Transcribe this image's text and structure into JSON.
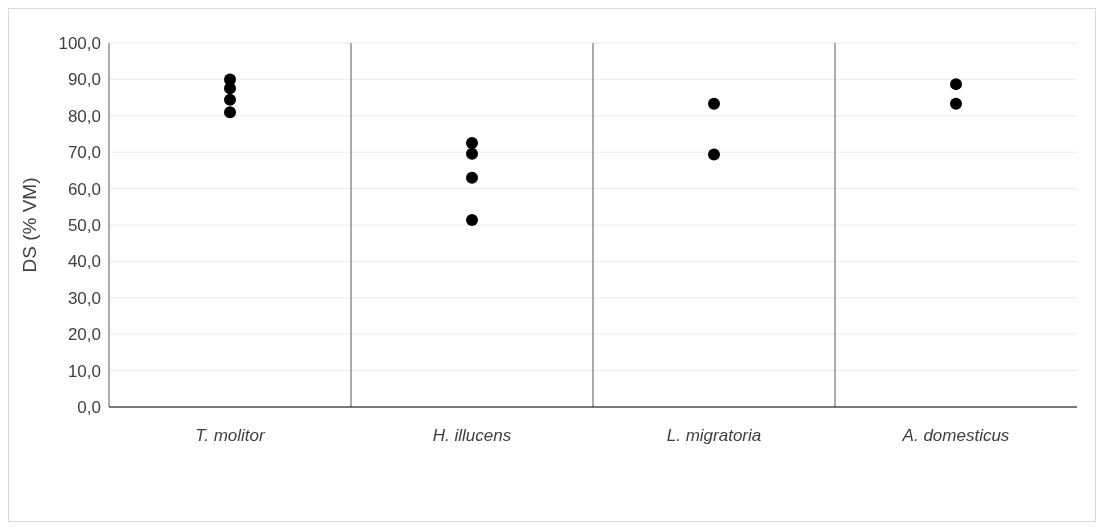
{
  "chart_data": {
    "type": "scatter",
    "ylabel": "DS (% VM)",
    "categories": [
      "T. molitor",
      "H. illucens",
      "L. migratoria",
      "A. domesticus"
    ],
    "series": [
      {
        "color": "#000000",
        "x": [
          "T. molitor",
          "T. molitor",
          "T. molitor",
          "T. molitor",
          "H. illucens",
          "H. illucens",
          "H. illucens",
          "H. illucens",
          "L. migratoria",
          "L. migratoria",
          "A. domesticus",
          "A. domesticus"
        ],
        "values": [
          90.0,
          87.6,
          84.4,
          81.0,
          72.5,
          69.6,
          63.0,
          51.4,
          83.3,
          69.4,
          88.7,
          83.3
        ]
      }
    ],
    "ylim": [
      0,
      100
    ],
    "yticks": [
      {
        "value": 0,
        "label": "0,0"
      },
      {
        "value": 10,
        "label": "10,0"
      },
      {
        "value": 20,
        "label": "20,0"
      },
      {
        "value": 30,
        "label": "30,0"
      },
      {
        "value": 40,
        "label": "40,0"
      },
      {
        "value": 50,
        "label": "50,0"
      },
      {
        "value": 60,
        "label": "60,0"
      },
      {
        "value": 70,
        "label": "70,0"
      },
      {
        "value": 80,
        "label": "80,0"
      },
      {
        "value": 90,
        "label": "90,0"
      },
      {
        "value": 100,
        "label": "100,0"
      }
    ],
    "grid": true,
    "marker": "circle"
  }
}
